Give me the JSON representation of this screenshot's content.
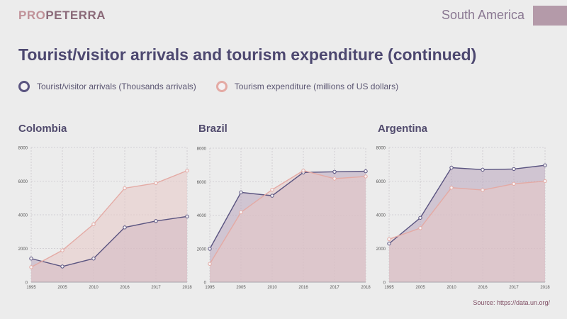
{
  "header": {
    "brand_part1": "PRO",
    "brand_part2": "PETERRA",
    "region": "South America",
    "title": "Tourist/visitor arrivals and tourism expenditure (continued)"
  },
  "legend": {
    "arrivals_label": "Tourist/visitor arrivals (Thousands arrivals)",
    "expenditure_label": "Tourism expenditure (millions of US dollars)"
  },
  "colors": {
    "arrivals_line": "#5a5480",
    "arrivals_fill": "#b9a6bd",
    "expenditure_line": "#e4aaa4",
    "expenditure_fill": "#e8c9c6"
  },
  "source": "Source: https://data.un.org/",
  "chart_data": [
    {
      "type": "area",
      "title": "Colombia",
      "x": [
        "1995",
        "2005",
        "2010",
        "2016",
        "2017",
        "2018"
      ],
      "ylim": [
        0,
        8000
      ],
      "y_ticks": [
        "0",
        "2000",
        "4000",
        "6000",
        "8000"
      ],
      "grid": true,
      "series": [
        {
          "name": "Tourist/visitor arrivals (Thousands arrivals)",
          "values": [
            1400,
            930,
            1400,
            3250,
            3630,
            3900
          ]
        },
        {
          "name": "Tourism expenditure (millions of US dollars)",
          "values": [
            890,
            1890,
            3440,
            5580,
            5880,
            6620
          ]
        }
      ]
    },
    {
      "type": "area",
      "title": "Brazil",
      "x": [
        "1995",
        "2005",
        "2010",
        "2016",
        "2017",
        "2018"
      ],
      "ylim": [
        0,
        8000
      ],
      "y_ticks": [
        "0",
        "2000",
        "4000",
        "6000",
        "8000"
      ],
      "grid": true,
      "series": [
        {
          "name": "Tourist/visitor arrivals (Thousands arrivals)",
          "values": [
            1990,
            5360,
            5160,
            6550,
            6590,
            6620
          ]
        },
        {
          "name": "Tourism expenditure (millions of US dollars)",
          "values": [
            1090,
            4170,
            5520,
            6660,
            6180,
            6310
          ]
        }
      ]
    },
    {
      "type": "area",
      "title": "Argentina",
      "x": [
        "1995",
        "2005",
        "2010",
        "2016",
        "2017",
        "2018"
      ],
      "ylim": [
        0,
        8000
      ],
      "y_ticks": [
        "0",
        "2000",
        "4000",
        "6000",
        "8000"
      ],
      "grid": true,
      "series": [
        {
          "name": "Tourist/visitor arrivals (Thousands arrivals)",
          "values": [
            2290,
            3820,
            6800,
            6680,
            6720,
            6940
          ]
        },
        {
          "name": "Tourism expenditure (millions of US dollars)",
          "values": [
            2550,
            3210,
            5610,
            5470,
            5840,
            6000
          ]
        }
      ]
    }
  ]
}
